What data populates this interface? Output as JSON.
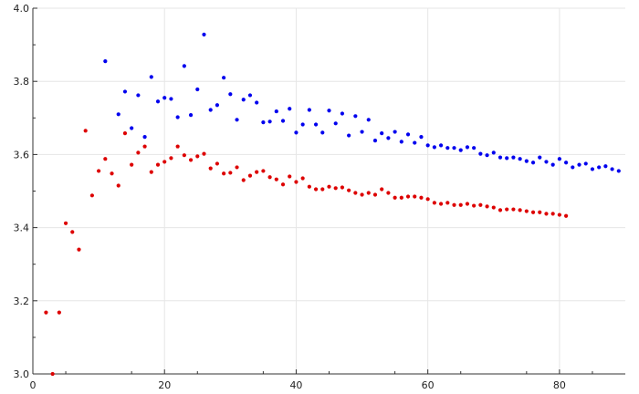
{
  "chart_data": {
    "type": "scatter",
    "title": "",
    "xlabel": "",
    "ylabel": "",
    "xlim": [
      0,
      90
    ],
    "ylim": [
      3.0,
      4.0
    ],
    "x_ticks": [
      0,
      20,
      40,
      60,
      80
    ],
    "y_ticks": [
      3.0,
      3.2,
      3.4,
      3.6,
      3.8,
      4.0
    ],
    "x_tick_labels": [
      "0",
      "20",
      "40",
      "60",
      "80"
    ],
    "y_tick_labels": [
      "3.0",
      "3.2",
      "3.4",
      "3.6",
      "3.8",
      "4.0"
    ],
    "grid": true,
    "legend": "none",
    "series": [
      {
        "color": "#0000ee",
        "points": [
          [
            11,
            3.855
          ],
          [
            13,
            3.71
          ],
          [
            14,
            3.772
          ],
          [
            15,
            3.672
          ],
          [
            16,
            3.762
          ],
          [
            17,
            3.648
          ],
          [
            18,
            3.812
          ],
          [
            19,
            3.745
          ],
          [
            20,
            3.755
          ],
          [
            21,
            3.752
          ],
          [
            22,
            3.702
          ],
          [
            23,
            3.842
          ],
          [
            24,
            3.708
          ],
          [
            25,
            3.778
          ],
          [
            26,
            3.928
          ],
          [
            27,
            3.722
          ],
          [
            28,
            3.735
          ],
          [
            29,
            3.81
          ],
          [
            30,
            3.765
          ],
          [
            31,
            3.695
          ],
          [
            32,
            3.75
          ],
          [
            33,
            3.762
          ],
          [
            34,
            3.742
          ],
          [
            35,
            3.688
          ],
          [
            36,
            3.69
          ],
          [
            37,
            3.718
          ],
          [
            38,
            3.692
          ],
          [
            39,
            3.725
          ],
          [
            40,
            3.66
          ],
          [
            41,
            3.682
          ],
          [
            42,
            3.722
          ],
          [
            43,
            3.682
          ],
          [
            44,
            3.66
          ],
          [
            45,
            3.72
          ],
          [
            46,
            3.685
          ],
          [
            47,
            3.712
          ],
          [
            48,
            3.652
          ],
          [
            49,
            3.705
          ],
          [
            50,
            3.662
          ],
          [
            51,
            3.695
          ],
          [
            52,
            3.638
          ],
          [
            53,
            3.658
          ],
          [
            54,
            3.645
          ],
          [
            55,
            3.662
          ],
          [
            56,
            3.635
          ],
          [
            57,
            3.655
          ],
          [
            58,
            3.632
          ],
          [
            59,
            3.648
          ],
          [
            60,
            3.625
          ],
          [
            61,
            3.62
          ],
          [
            62,
            3.625
          ],
          [
            63,
            3.618
          ],
          [
            64,
            3.618
          ],
          [
            65,
            3.612
          ],
          [
            66,
            3.62
          ],
          [
            67,
            3.618
          ],
          [
            68,
            3.602
          ],
          [
            69,
            3.598
          ],
          [
            70,
            3.605
          ],
          [
            71,
            3.592
          ],
          [
            72,
            3.59
          ],
          [
            73,
            3.592
          ],
          [
            74,
            3.588
          ],
          [
            75,
            3.582
          ],
          [
            76,
            3.578
          ],
          [
            77,
            3.592
          ],
          [
            78,
            3.58
          ],
          [
            79,
            3.572
          ],
          [
            80,
            3.588
          ],
          [
            81,
            3.578
          ],
          [
            82,
            3.565
          ],
          [
            83,
            3.572
          ],
          [
            84,
            3.575
          ],
          [
            85,
            3.56
          ],
          [
            86,
            3.565
          ],
          [
            87,
            3.568
          ],
          [
            88,
            3.56
          ],
          [
            89,
            3.555
          ]
        ]
      },
      {
        "color": "#dd0000",
        "points": [
          [
            2,
            3.168
          ],
          [
            3,
            3.0
          ],
          [
            4,
            3.168
          ],
          [
            5,
            3.412
          ],
          [
            6,
            3.388
          ],
          [
            7,
            3.34
          ],
          [
            8,
            3.665
          ],
          [
            9,
            3.488
          ],
          [
            10,
            3.555
          ],
          [
            11,
            3.588
          ],
          [
            12,
            3.548
          ],
          [
            13,
            3.515
          ],
          [
            14,
            3.658
          ],
          [
            15,
            3.572
          ],
          [
            16,
            3.605
          ],
          [
            17,
            3.622
          ],
          [
            18,
            3.552
          ],
          [
            19,
            3.572
          ],
          [
            20,
            3.58
          ],
          [
            21,
            3.59
          ],
          [
            22,
            3.622
          ],
          [
            23,
            3.598
          ],
          [
            24,
            3.585
          ],
          [
            25,
            3.595
          ],
          [
            26,
            3.602
          ],
          [
            27,
            3.562
          ],
          [
            28,
            3.575
          ],
          [
            29,
            3.548
          ],
          [
            30,
            3.55
          ],
          [
            31,
            3.565
          ],
          [
            32,
            3.53
          ],
          [
            33,
            3.542
          ],
          [
            34,
            3.552
          ],
          [
            35,
            3.555
          ],
          [
            36,
            3.538
          ],
          [
            37,
            3.532
          ],
          [
            38,
            3.518
          ],
          [
            39,
            3.54
          ],
          [
            40,
            3.525
          ],
          [
            41,
            3.535
          ],
          [
            42,
            3.512
          ],
          [
            43,
            3.505
          ],
          [
            44,
            3.505
          ],
          [
            45,
            3.512
          ],
          [
            46,
            3.508
          ],
          [
            47,
            3.51
          ],
          [
            48,
            3.502
          ],
          [
            49,
            3.495
          ],
          [
            50,
            3.49
          ],
          [
            51,
            3.495
          ],
          [
            52,
            3.49
          ],
          [
            53,
            3.505
          ],
          [
            54,
            3.495
          ],
          [
            55,
            3.482
          ],
          [
            56,
            3.482
          ],
          [
            57,
            3.485
          ],
          [
            58,
            3.485
          ],
          [
            59,
            3.482
          ],
          [
            60,
            3.478
          ],
          [
            61,
            3.468
          ],
          [
            62,
            3.465
          ],
          [
            63,
            3.468
          ],
          [
            64,
            3.462
          ],
          [
            65,
            3.462
          ],
          [
            66,
            3.465
          ],
          [
            67,
            3.46
          ],
          [
            68,
            3.462
          ],
          [
            69,
            3.458
          ],
          [
            70,
            3.455
          ],
          [
            71,
            3.448
          ],
          [
            72,
            3.45
          ],
          [
            73,
            3.45
          ],
          [
            74,
            3.448
          ],
          [
            75,
            3.445
          ],
          [
            76,
            3.442
          ],
          [
            77,
            3.442
          ],
          [
            78,
            3.438
          ],
          [
            79,
            3.438
          ],
          [
            80,
            3.435
          ],
          [
            81,
            3.432
          ]
        ]
      }
    ]
  }
}
